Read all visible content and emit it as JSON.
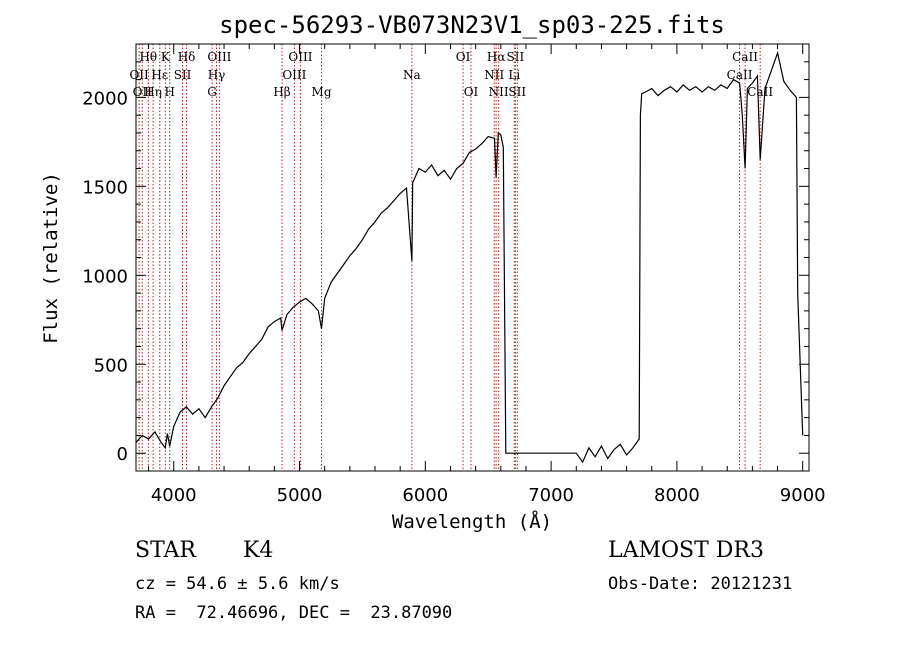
{
  "chart_data": {
    "type": "line",
    "title": "spec-56293-VB073N23V1_sp03-225.fits",
    "xlabel": "Wavelength (Å)",
    "ylabel": "Flux (relative)",
    "xlim": [
      3700,
      9050
    ],
    "ylim": [
      -100,
      2300
    ],
    "x_ticks": [
      4000,
      5000,
      6000,
      7000,
      8000,
      9000
    ],
    "y_ticks": [
      0,
      500,
      1000,
      1500,
      2000
    ],
    "grid": false,
    "line_color": "#000000",
    "marker_color": "#b22222",
    "series": [
      {
        "x": [
          3700,
          3750,
          3800,
          3850,
          3900,
          3933,
          3950,
          3968,
          4000,
          4050,
          4100,
          4150,
          4200,
          4250,
          4300,
          4350,
          4400,
          4450,
          4500,
          4550,
          4600,
          4650,
          4700,
          4750,
          4800,
          4850,
          4861,
          4900,
          4950,
          5000,
          5050,
          5100,
          5150,
          5175,
          5200,
          5250,
          5300,
          5350,
          5400,
          5450,
          5500,
          5550,
          5600,
          5650,
          5700,
          5750,
          5800,
          5850,
          5893,
          5900,
          5950,
          6000,
          6050,
          6100,
          6150,
          6200,
          6250,
          6300,
          6350,
          6400,
          6450,
          6500,
          6550,
          6563,
          6580,
          6600,
          6620,
          6640,
          6660,
          6700,
          6800,
          6900,
          7000,
          7100,
          7200,
          7250,
          7300,
          7350,
          7400,
          7450,
          7500,
          7550,
          7600,
          7650,
          7700,
          7710,
          7720,
          7750,
          7800,
          7850,
          7900,
          7950,
          8000,
          8050,
          8100,
          8150,
          8200,
          8250,
          8300,
          8350,
          8400,
          8450,
          8498,
          8520,
          8542,
          8560,
          8600,
          8640,
          8662,
          8700,
          8750,
          8800,
          8850,
          8900,
          8950,
          8960,
          8980,
          9000
        ],
        "y": [
          60,
          100,
          80,
          120,
          60,
          30,
          110,
          40,
          150,
          230,
          260,
          220,
          250,
          200,
          260,
          310,
          380,
          430,
          480,
          510,
          560,
          600,
          640,
          710,
          740,
          760,
          690,
          780,
          820,
          850,
          870,
          840,
          800,
          700,
          870,
          960,
          1010,
          1060,
          1110,
          1150,
          1200,
          1260,
          1300,
          1350,
          1380,
          1420,
          1460,
          1490,
          1080,
          1520,
          1600,
          1580,
          1620,
          1560,
          1590,
          1540,
          1600,
          1630,
          1690,
          1710,
          1740,
          1780,
          1770,
          1550,
          1800,
          1790,
          1720,
          0,
          0,
          0,
          0,
          0,
          0,
          0,
          0,
          -50,
          30,
          -20,
          40,
          -30,
          20,
          50,
          -10,
          30,
          80,
          1900,
          2020,
          2030,
          2050,
          2010,
          2040,
          2060,
          2030,
          2070,
          2040,
          2060,
          2030,
          2060,
          2040,
          2070,
          2050,
          2100,
          2080,
          1900,
          1600,
          2050,
          2080,
          2120,
          1650,
          2050,
          2150,
          2250,
          2090,
          2040,
          2000,
          900,
          500,
          100
        ]
      }
    ],
    "lines": [
      {
        "wavelength": 3725,
        "label": "OII",
        "row": 2
      },
      {
        "wavelength": 3750,
        "label": "OII",
        "row": 3
      },
      {
        "wavelength": 3798,
        "label": "Hθ",
        "row": 1
      },
      {
        "wavelength": 3836,
        "label": "Hη",
        "row": 3
      },
      {
        "wavelength": 3889,
        "label": "Hε",
        "row": 2
      },
      {
        "wavelength": 3933,
        "label": "K",
        "row": 1
      },
      {
        "wavelength": 3968,
        "label": "H",
        "row": 3
      },
      {
        "wavelength": 4070,
        "label": "SII",
        "row": 2
      },
      {
        "wavelength": 4102,
        "label": "Hδ",
        "row": 1
      },
      {
        "wavelength": 4305,
        "label": "G",
        "row": 3
      },
      {
        "wavelength": 4340,
        "label": "Hγ",
        "row": 2
      },
      {
        "wavelength": 4363,
        "label": "OIII",
        "row": 1
      },
      {
        "wavelength": 4861,
        "label": "Hβ",
        "row": 3
      },
      {
        "wavelength": 4959,
        "label": "OIII",
        "row": 2
      },
      {
        "wavelength": 5007,
        "label": "OIII",
        "row": 1
      },
      {
        "wavelength": 5175,
        "label": "Mg",
        "row": 3
      },
      {
        "wavelength": 5893,
        "label": "Na",
        "row": 2
      },
      {
        "wavelength": 6300,
        "label": "OI",
        "row": 1
      },
      {
        "wavelength": 6363,
        "label": "OI",
        "row": 3
      },
      {
        "wavelength": 6548,
        "label": "NII",
        "row": 2
      },
      {
        "wavelength": 6563,
        "label": "Hα",
        "row": 1
      },
      {
        "wavelength": 6583,
        "label": "NII",
        "row": 3
      },
      {
        "wavelength": 6707,
        "label": "Li",
        "row": 2
      },
      {
        "wavelength": 6716,
        "label": "SII",
        "row": 1
      },
      {
        "wavelength": 6731,
        "label": "SII",
        "row": 3
      },
      {
        "wavelength": 8498,
        "label": "CaII",
        "row": 2
      },
      {
        "wavelength": 8542,
        "label": "CaII",
        "row": 1
      },
      {
        "wavelength": 8662,
        "label": "CaII",
        "row": 3
      }
    ]
  },
  "info": {
    "class": "STAR",
    "subclass": "K4",
    "survey": "LAMOST DR3",
    "cz": "cz = 54.6 ± 5.6 km/s",
    "obs_date": "Obs-Date: 20121231",
    "radec": "RA =  72.46696, DEC =  23.87090"
  }
}
